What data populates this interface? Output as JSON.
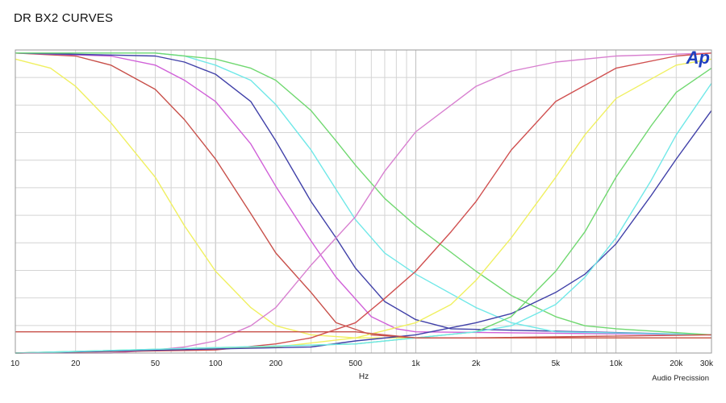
{
  "chart_data": {
    "type": "line",
    "title": "DR BX2 CURVES",
    "xlabel": "Hz",
    "ylabel": "",
    "credit": "Audio Precission",
    "logo_text": "Ap",
    "x_scale": "log",
    "xlim": [
      10,
      30000
    ],
    "ylim": [
      0,
      1
    ],
    "grid": true,
    "x_ticks": [
      10,
      20,
      50,
      100,
      200,
      500,
      1000,
      2000,
      5000,
      10000,
      20000,
      30000
    ],
    "x_tick_labels": [
      "10",
      "20",
      "50",
      "100",
      "200",
      "500",
      "1k",
      "2k",
      "5k",
      "10k",
      "20k",
      "30k"
    ],
    "series": [
      {
        "color": "#f0f060",
        "points": [
          [
            10,
            0.97
          ],
          [
            15,
            0.94
          ],
          [
            20,
            0.88
          ],
          [
            30,
            0.76
          ],
          [
            50,
            0.58
          ],
          [
            70,
            0.42
          ],
          [
            100,
            0.27
          ],
          [
            150,
            0.15
          ],
          [
            200,
            0.09
          ],
          [
            300,
            0.06
          ],
          [
            500,
            0.05
          ],
          [
            1000,
            0.05
          ],
          [
            30000,
            0.05
          ]
        ]
      },
      {
        "color": "#c8504a",
        "points": [
          [
            10,
            0.99
          ],
          [
            20,
            0.98
          ],
          [
            30,
            0.95
          ],
          [
            50,
            0.87
          ],
          [
            70,
            0.77
          ],
          [
            100,
            0.64
          ],
          [
            150,
            0.46
          ],
          [
            200,
            0.33
          ],
          [
            300,
            0.2
          ],
          [
            400,
            0.1
          ],
          [
            600,
            0.06
          ],
          [
            1000,
            0.05
          ],
          [
            30000,
            0.05
          ]
        ]
      },
      {
        "color": "#d060d8",
        "points": [
          [
            10,
            0.99
          ],
          [
            30,
            0.98
          ],
          [
            50,
            0.95
          ],
          [
            70,
            0.9
          ],
          [
            100,
            0.83
          ],
          [
            150,
            0.69
          ],
          [
            200,
            0.55
          ],
          [
            300,
            0.37
          ],
          [
            400,
            0.25
          ],
          [
            600,
            0.12
          ],
          [
            800,
            0.08
          ],
          [
            1000,
            0.07
          ],
          [
            30000,
            0.06
          ]
        ]
      },
      {
        "color": "#4040a8",
        "points": [
          [
            10,
            0.99
          ],
          [
            50,
            0.98
          ],
          [
            70,
            0.96
          ],
          [
            100,
            0.92
          ],
          [
            150,
            0.83
          ],
          [
            200,
            0.7
          ],
          [
            300,
            0.5
          ],
          [
            400,
            0.38
          ],
          [
            500,
            0.28
          ],
          [
            700,
            0.17
          ],
          [
            1000,
            0.11
          ],
          [
            1500,
            0.08
          ],
          [
            30000,
            0.06
          ]
        ]
      },
      {
        "color": "#70e8e8",
        "points": [
          [
            10,
            0.99
          ],
          [
            50,
            0.99
          ],
          [
            70,
            0.98
          ],
          [
            100,
            0.95
          ],
          [
            150,
            0.9
          ],
          [
            200,
            0.82
          ],
          [
            300,
            0.67
          ],
          [
            400,
            0.54
          ],
          [
            500,
            0.44
          ],
          [
            700,
            0.33
          ],
          [
            1000,
            0.26
          ],
          [
            2000,
            0.15
          ],
          [
            3000,
            0.1
          ],
          [
            5000,
            0.07
          ],
          [
            30000,
            0.06
          ]
        ]
      },
      {
        "color": "#70d870",
        "points": [
          [
            10,
            0.99
          ],
          [
            50,
            0.99
          ],
          [
            100,
            0.97
          ],
          [
            150,
            0.94
          ],
          [
            200,
            0.9
          ],
          [
            300,
            0.8
          ],
          [
            400,
            0.7
          ],
          [
            500,
            0.62
          ],
          [
            700,
            0.51
          ],
          [
            1000,
            0.42
          ],
          [
            2000,
            0.27
          ],
          [
            3000,
            0.19
          ],
          [
            5000,
            0.12
          ],
          [
            7000,
            0.09
          ],
          [
            10000,
            0.08
          ],
          [
            30000,
            0.06
          ]
        ]
      },
      {
        "color": "#d880d0",
        "points": [
          [
            10,
            0.0
          ],
          [
            30,
            0.0
          ],
          [
            50,
            0.01
          ],
          [
            70,
            0.02
          ],
          [
            100,
            0.04
          ],
          [
            150,
            0.09
          ],
          [
            200,
            0.15
          ],
          [
            300,
            0.29
          ],
          [
            400,
            0.38
          ],
          [
            500,
            0.45
          ],
          [
            700,
            0.6
          ],
          [
            1000,
            0.73
          ],
          [
            2000,
            0.88
          ],
          [
            3000,
            0.93
          ],
          [
            5000,
            0.96
          ],
          [
            10000,
            0.98
          ],
          [
            30000,
            0.99
          ]
        ]
      },
      {
        "color": "#d05050",
        "points": [
          [
            10,
            0.0
          ],
          [
            100,
            0.01
          ],
          [
            200,
            0.03
          ],
          [
            300,
            0.05
          ],
          [
            500,
            0.1
          ],
          [
            700,
            0.18
          ],
          [
            1000,
            0.27
          ],
          [
            1500,
            0.4
          ],
          [
            2000,
            0.5
          ],
          [
            3000,
            0.67
          ],
          [
            5000,
            0.83
          ],
          [
            10000,
            0.94
          ],
          [
            20000,
            0.98
          ],
          [
            30000,
            0.99
          ]
        ]
      },
      {
        "color": "#f0f060",
        "points": [
          [
            10,
            0.0
          ],
          [
            200,
            0.02
          ],
          [
            500,
            0.05
          ],
          [
            1000,
            0.1
          ],
          [
            1500,
            0.16
          ],
          [
            2000,
            0.24
          ],
          [
            3000,
            0.38
          ],
          [
            5000,
            0.58
          ],
          [
            7000,
            0.72
          ],
          [
            10000,
            0.84
          ],
          [
            20000,
            0.95
          ],
          [
            30000,
            0.97
          ]
        ]
      },
      {
        "color": "#4040a8",
        "points": [
          [
            10,
            0.0
          ],
          [
            300,
            0.02
          ],
          [
            500,
            0.04
          ],
          [
            1000,
            0.06
          ],
          [
            2000,
            0.1
          ],
          [
            3000,
            0.13
          ],
          [
            5000,
            0.2
          ],
          [
            7000,
            0.26
          ],
          [
            10000,
            0.36
          ],
          [
            15000,
            0.52
          ],
          [
            20000,
            0.64
          ],
          [
            30000,
            0.8
          ]
        ]
      },
      {
        "color": "#70d870",
        "points": [
          [
            10,
            0.0
          ],
          [
            500,
            0.03
          ],
          [
            1000,
            0.05
          ],
          [
            2000,
            0.07
          ],
          [
            3000,
            0.12
          ],
          [
            5000,
            0.27
          ],
          [
            7000,
            0.4
          ],
          [
            10000,
            0.58
          ],
          [
            15000,
            0.75
          ],
          [
            20000,
            0.86
          ],
          [
            30000,
            0.94
          ]
        ]
      },
      {
        "color": "#70e8e8",
        "points": [
          [
            10,
            0.0
          ],
          [
            500,
            0.03
          ],
          [
            1000,
            0.05
          ],
          [
            2000,
            0.07
          ],
          [
            3000,
            0.09
          ],
          [
            5000,
            0.16
          ],
          [
            7000,
            0.25
          ],
          [
            10000,
            0.38
          ],
          [
            15000,
            0.57
          ],
          [
            20000,
            0.72
          ],
          [
            30000,
            0.89
          ]
        ]
      },
      {
        "color": "#c8504a",
        "points": [
          [
            10,
            0.07
          ],
          [
            100,
            0.07
          ],
          [
            300,
            0.07
          ],
          [
            500,
            0.07
          ],
          [
            700,
            0.06
          ],
          [
            1000,
            0.05
          ],
          [
            2000,
            0.05
          ],
          [
            30000,
            0.06
          ]
        ]
      }
    ]
  }
}
